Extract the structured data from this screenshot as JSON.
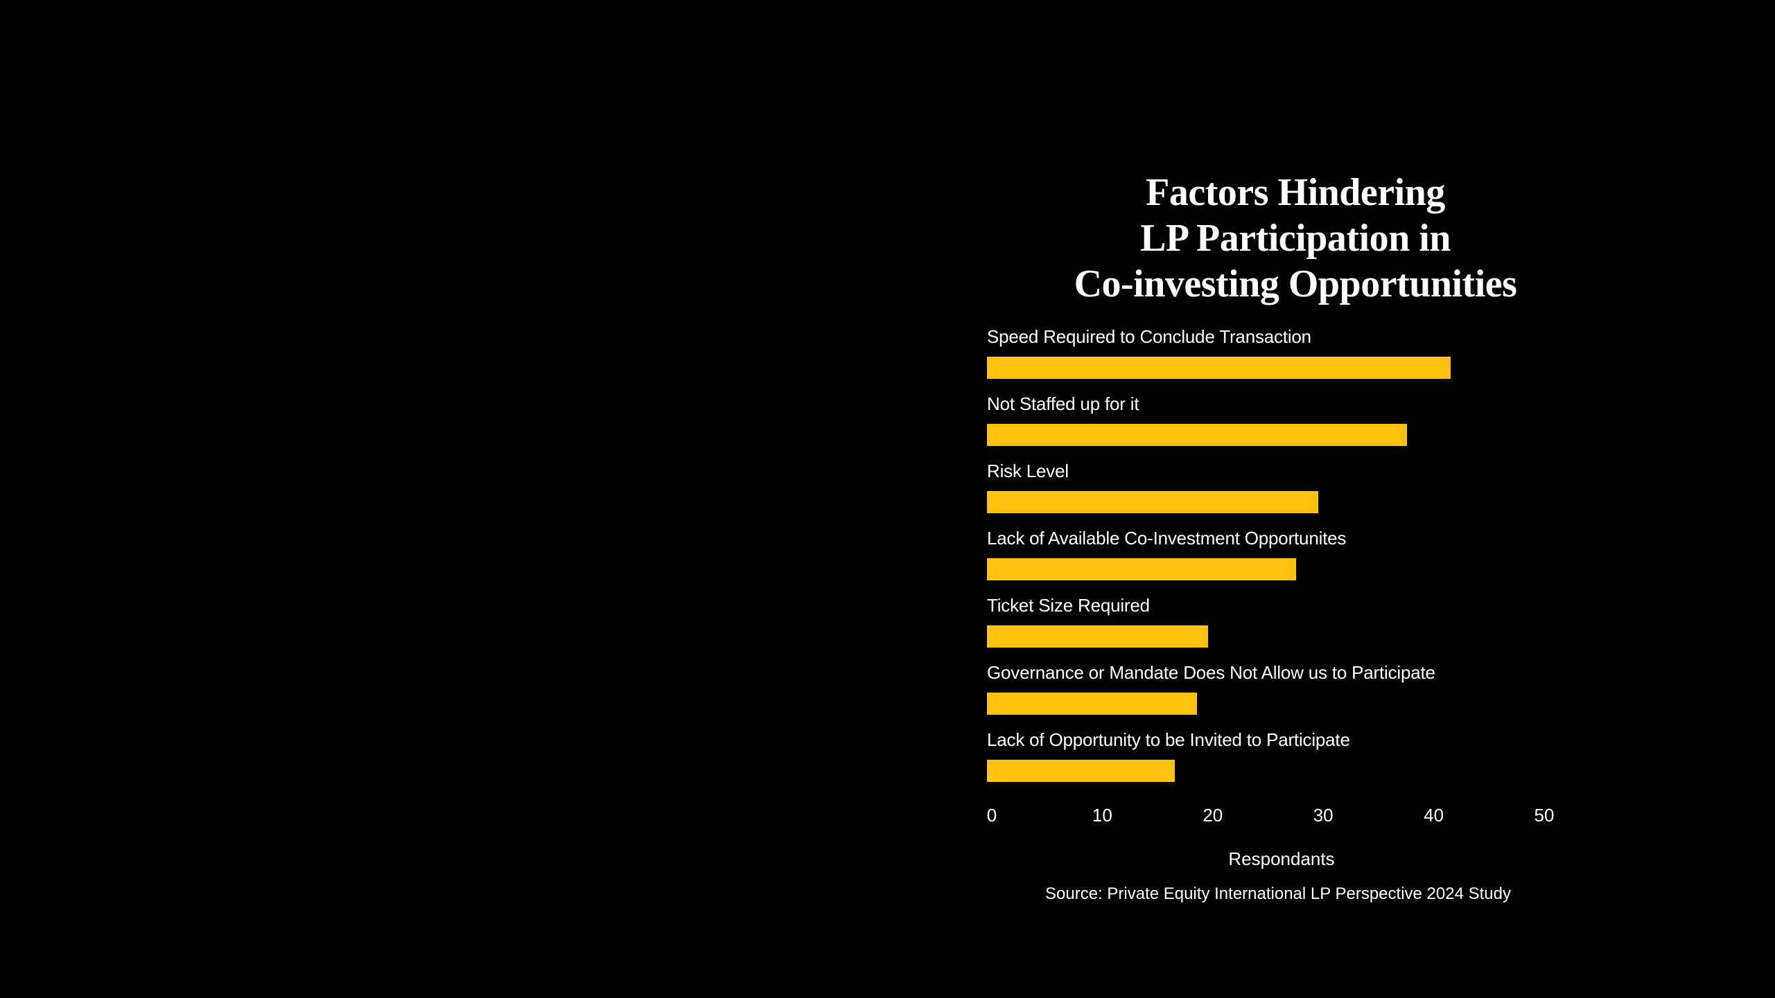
{
  "page": {
    "background_color": "#000000",
    "text_color": "#FFFFFF"
  },
  "chart_data": {
    "type": "bar",
    "orientation": "horizontal",
    "title": "Factors Hindering LP Participation in Co-investing Opportunities",
    "title_lines": [
      "Factors Hindering",
      "LP Participation in",
      "Co-investing Opportunities"
    ],
    "categories": [
      "Speed Required to Conclude Transaction",
      "Not Staffed up for it",
      "Risk Level",
      "Lack of Available Co-Investment Opportunites",
      "Ticket Size Required",
      "Governance or Mandate Does Not Allow us to Participate",
      "Lack of Opportunity to be Invited to Participate"
    ],
    "values": [
      42,
      38,
      30,
      28,
      20,
      19,
      17
    ],
    "xlabel": "Respondants",
    "xticks": [
      0,
      10,
      20,
      30,
      40,
      50
    ],
    "xlim": [
      0,
      50
    ],
    "grid": false,
    "legend": false,
    "bar_color": "#FFC20E",
    "background_color": "#000000",
    "text_color": "#FFFFFF",
    "source": "Source: Private Equity International LP Perspective 2024 Study"
  }
}
